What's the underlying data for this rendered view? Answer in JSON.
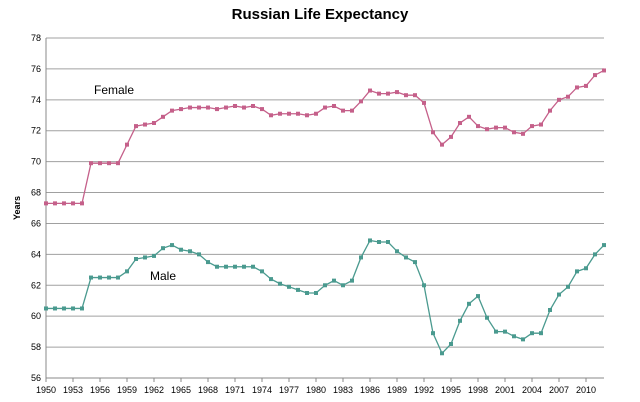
{
  "chart_data": {
    "type": "line",
    "title": "Russian Life Expectancy",
    "xlabel": "",
    "ylabel": "Years",
    "ylim": [
      56,
      78
    ],
    "yticks": [
      56,
      58,
      60,
      62,
      64,
      66,
      68,
      70,
      72,
      74,
      76,
      78
    ],
    "xlim": [
      1950,
      2012
    ],
    "xticks": [
      1950,
      1953,
      1956,
      1959,
      1962,
      1965,
      1968,
      1971,
      1974,
      1977,
      1980,
      1983,
      1986,
      1989,
      1992,
      1995,
      1998,
      2001,
      2004,
      2007,
      2010
    ],
    "grid": "horizontal",
    "legend": "none",
    "x": [
      1950,
      1951,
      1952,
      1953,
      1954,
      1955,
      1956,
      1957,
      1958,
      1959,
      1960,
      1961,
      1962,
      1963,
      1964,
      1965,
      1966,
      1967,
      1968,
      1969,
      1970,
      1971,
      1972,
      1973,
      1974,
      1975,
      1976,
      1977,
      1978,
      1979,
      1980,
      1981,
      1982,
      1983,
      1984,
      1985,
      1986,
      1987,
      1988,
      1989,
      1990,
      1991,
      1992,
      1993,
      1994,
      1995,
      1996,
      1997,
      1998,
      1999,
      2000,
      2001,
      2002,
      2003,
      2004,
      2005,
      2006,
      2007,
      2008,
      2009,
      2010,
      2011,
      2012
    ],
    "series": [
      {
        "name": "Female",
        "color": "#c5608a",
        "values": [
          67.3,
          67.3,
          67.3,
          67.3,
          67.3,
          69.9,
          69.9,
          69.9,
          69.9,
          71.1,
          72.3,
          72.4,
          72.5,
          72.9,
          73.3,
          73.4,
          73.5,
          73.5,
          73.5,
          73.4,
          73.5,
          73.6,
          73.5,
          73.6,
          73.4,
          73.0,
          73.1,
          73.1,
          73.1,
          73.0,
          73.1,
          73.5,
          73.6,
          73.3,
          73.3,
          73.9,
          74.6,
          74.4,
          74.4,
          74.5,
          74.3,
          74.3,
          73.8,
          71.9,
          71.1,
          71.6,
          72.5,
          72.9,
          72.3,
          72.1,
          72.2,
          72.2,
          71.9,
          71.8,
          72.3,
          72.4,
          73.3,
          74.0,
          74.2,
          74.8,
          74.9,
          75.6,
          75.9
        ]
      },
      {
        "name": "Male",
        "color": "#4a9a8f",
        "values": [
          60.5,
          60.5,
          60.5,
          60.5,
          60.5,
          62.5,
          62.5,
          62.5,
          62.5,
          62.9,
          63.7,
          63.8,
          63.9,
          64.4,
          64.6,
          64.3,
          64.2,
          64.0,
          63.5,
          63.2,
          63.2,
          63.2,
          63.2,
          63.2,
          62.9,
          62.4,
          62.1,
          61.9,
          61.7,
          61.5,
          61.5,
          62.0,
          62.3,
          62.0,
          62.3,
          63.8,
          64.9,
          64.8,
          64.8,
          64.2,
          63.8,
          63.5,
          62.0,
          58.9,
          57.6,
          58.2,
          59.7,
          60.8,
          61.3,
          59.9,
          59.0,
          59.0,
          58.7,
          58.5,
          58.9,
          58.9,
          60.4,
          61.4,
          61.9,
          62.9,
          63.1,
          64.0,
          64.6
        ]
      }
    ]
  }
}
